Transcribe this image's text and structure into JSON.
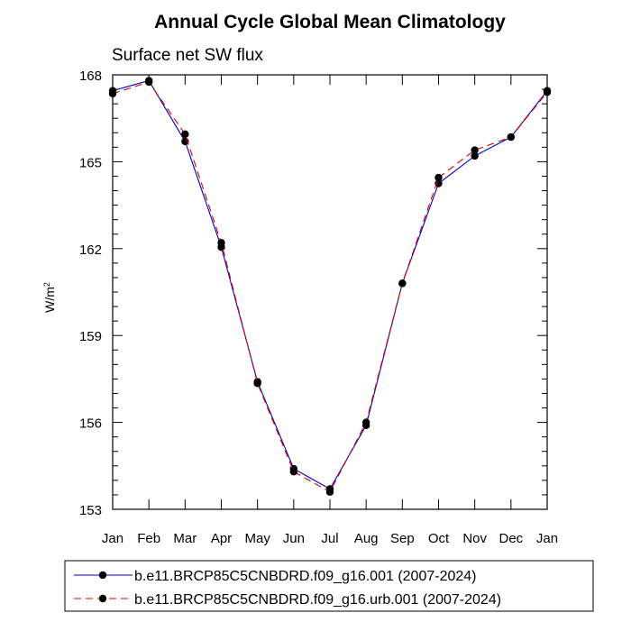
{
  "chart_data": {
    "type": "line",
    "title": "Annual Cycle Global Mean Climatology",
    "subtitle": "Surface net SW flux",
    "ylabel_base": "W/m",
    "ylabel_sup": "2",
    "xlabel": "",
    "categories": [
      "Jan",
      "Feb",
      "Mar",
      "Apr",
      "May",
      "Jun",
      "Jul",
      "Aug",
      "Sep",
      "Oct",
      "Nov",
      "Dec",
      "Jan"
    ],
    "ylim": [
      153,
      168
    ],
    "yticks": [
      153,
      156,
      159,
      162,
      165,
      168
    ],
    "series": [
      {
        "name": "b.e11.BRCP85C5CNBDRD.f09_g16.001 (2007-2024)",
        "color": "#0000cc",
        "dash": "solid",
        "values": [
          167.45,
          167.8,
          165.7,
          162.05,
          157.4,
          154.4,
          153.7,
          155.9,
          160.8,
          164.25,
          165.2,
          165.85,
          167.45
        ]
      },
      {
        "name": "b.e11.BRCP85C5CNBDRD.f09_g16.urb.001 (2007-2024)",
        "color": "#dd0000",
        "dash": "dashed",
        "values": [
          167.35,
          167.75,
          165.95,
          162.2,
          157.35,
          154.3,
          153.6,
          156.0,
          160.8,
          164.45,
          165.4,
          165.85,
          167.4
        ]
      }
    ],
    "legend_position": "bottom"
  }
}
